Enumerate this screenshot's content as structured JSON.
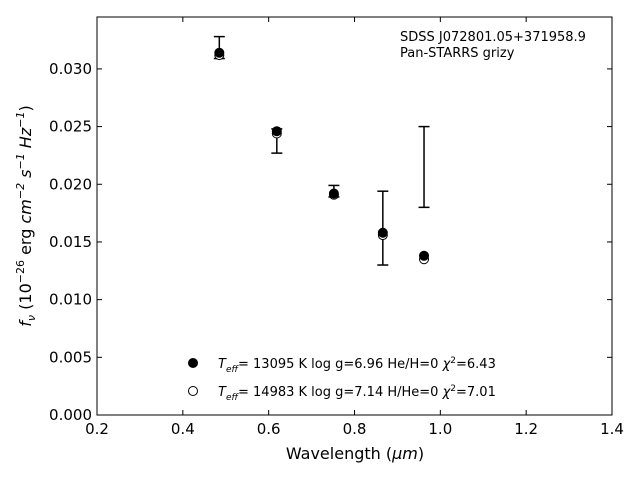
{
  "chart_data": {
    "type": "scatter",
    "xlabel_text": "Wavelength (",
    "xlabel_unit": "μm",
    "xlabel_close": ")",
    "ylabel_f": "f",
    "ylabel_nu": "ν",
    "ylabel_open": " (10",
    "ylabel_exp1": "−26",
    "ylabel_erg": " erg ",
    "ylabel_cm": "cm",
    "ylabel_exp2": "−2",
    "ylabel_s": " s",
    "ylabel_exp3": "−1",
    "ylabel_hz": " Hz",
    "ylabel_exp4": "−1",
    "ylabel_close": ")",
    "xlim": [
      0.2,
      1.4
    ],
    "ylim": [
      0.0,
      0.0345
    ],
    "xticks": [
      "0.2",
      "0.4",
      "0.6",
      "0.8",
      "1.0",
      "1.2",
      "1.4"
    ],
    "yticks": [
      "0.000",
      "0.005",
      "0.010",
      "0.015",
      "0.020",
      "0.025",
      "0.030"
    ],
    "annotation": [
      "SDSS J072801.05+371958.9",
      "Pan-STARRS grizy"
    ],
    "observed": {
      "x": [
        0.485,
        0.619,
        0.752,
        0.866,
        0.962
      ],
      "y": [
        0.0313,
        0.0245,
        0.0193,
        0.0157,
        null
      ],
      "yerr_low": [
        0.0309,
        0.0227,
        0.0189,
        0.013,
        0.018
      ],
      "yerr_high": [
        0.0328,
        0.0248,
        0.0199,
        0.0194,
        0.025
      ]
    },
    "series": [
      {
        "marker": "filled",
        "x": [
          0.485,
          0.619,
          0.752,
          0.866,
          0.962
        ],
        "y": [
          0.0314,
          0.0246,
          0.0192,
          0.0158,
          0.0138
        ],
        "teff_sym": "T",
        "teff_sub": "eff",
        "label_text": "= 13095 K  log g=6.96  He/H=0  ",
        "chi_sym": "χ",
        "chi_exp": "2",
        "chi_val": "=6.43"
      },
      {
        "marker": "open",
        "x": [
          0.485,
          0.619,
          0.752,
          0.866,
          0.962
        ],
        "y": [
          0.0312,
          0.0244,
          0.0191,
          0.0156,
          0.0135
        ],
        "teff_sym": "T",
        "teff_sub": "eff",
        "label_text": "= 14983 K  log g=7.14  H/He=0  ",
        "chi_sym": "χ",
        "chi_exp": "2",
        "chi_val": "=7.01"
      }
    ]
  }
}
